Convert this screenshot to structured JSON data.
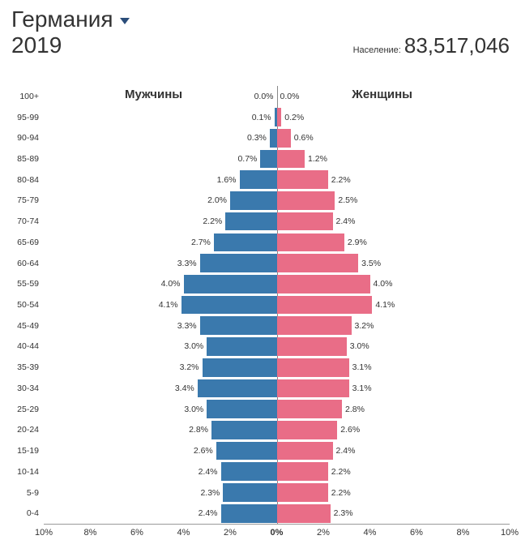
{
  "header": {
    "country": "Германия",
    "year": "2019",
    "population_label": "Население:",
    "population_value": "83,517,046"
  },
  "chart": {
    "type": "population-pyramid",
    "male_label": "Мужчины",
    "female_label": "Женщины",
    "male_color": "#3a79ad",
    "female_color": "#e96d87",
    "text_color": "#333333",
    "background_color": "#ffffff",
    "value_fontsize": 10.5,
    "axis_fontsize": 11,
    "gender_label_fontsize": 15,
    "x_axis": {
      "max_percent": 10,
      "ticks": [
        10,
        8,
        6,
        4,
        2,
        0,
        2,
        4,
        6,
        8,
        10
      ],
      "tick_labels": [
        "10%",
        "8%",
        "6%",
        "4%",
        "2%",
        "0%",
        "2%",
        "4%",
        "6%",
        "8%",
        "10%"
      ]
    },
    "age_groups": [
      {
        "label": "100+",
        "male": 0.0,
        "female": 0.0
      },
      {
        "label": "95-99",
        "male": 0.1,
        "female": 0.2
      },
      {
        "label": "90-94",
        "male": 0.3,
        "female": 0.6
      },
      {
        "label": "85-89",
        "male": 0.7,
        "female": 1.2
      },
      {
        "label": "80-84",
        "male": 1.6,
        "female": 2.2
      },
      {
        "label": "75-79",
        "male": 2.0,
        "female": 2.5
      },
      {
        "label": "70-74",
        "male": 2.2,
        "female": 2.4
      },
      {
        "label": "65-69",
        "male": 2.7,
        "female": 2.9
      },
      {
        "label": "60-64",
        "male": 3.3,
        "female": 3.5
      },
      {
        "label": "55-59",
        "male": 4.0,
        "female": 4.0
      },
      {
        "label": "50-54",
        "male": 4.1,
        "female": 4.1
      },
      {
        "label": "45-49",
        "male": 3.3,
        "female": 3.2
      },
      {
        "label": "40-44",
        "male": 3.0,
        "female": 3.0
      },
      {
        "label": "35-39",
        "male": 3.2,
        "female": 3.1
      },
      {
        "label": "30-34",
        "male": 3.4,
        "female": 3.1
      },
      {
        "label": "25-29",
        "male": 3.0,
        "female": 2.8
      },
      {
        "label": "20-24",
        "male": 2.8,
        "female": 2.6
      },
      {
        "label": "15-19",
        "male": 2.6,
        "female": 2.4
      },
      {
        "label": "10-14",
        "male": 2.4,
        "female": 2.2
      },
      {
        "label": "5-9",
        "male": 2.3,
        "female": 2.2
      },
      {
        "label": "0-4",
        "male": 2.4,
        "female": 2.3
      }
    ]
  }
}
